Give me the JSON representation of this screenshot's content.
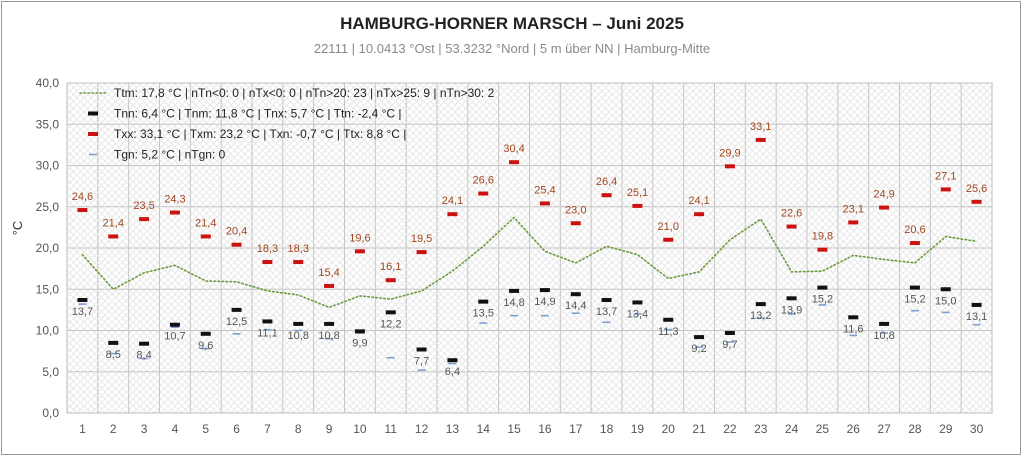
{
  "chart_data": {
    "type": "line",
    "title": "HAMBURG-HORNER MARSCH   –  Juni 2025",
    "subtitle": "22111  |  10.0413 °Ost  |  53.3232 °Nord   | 5 m über NN  |  Hamburg-Mitte",
    "ylabel": "°C",
    "xlabel": "",
    "ylim": [
      0,
      40
    ],
    "yticks": [
      "0,0",
      "5,0",
      "10,0",
      "15,0",
      "20,0",
      "25,0",
      "30,0",
      "35,0",
      "40,0"
    ],
    "x": [
      1,
      2,
      3,
      4,
      5,
      6,
      7,
      8,
      9,
      10,
      11,
      12,
      13,
      14,
      15,
      16,
      17,
      18,
      19,
      20,
      21,
      22,
      23,
      24,
      25,
      26,
      27,
      28,
      29,
      30
    ],
    "grid": true,
    "legend_position": "top-left",
    "colors": {
      "ttm": "#6a9b3c",
      "tn": "#111111",
      "tx": "#cc1111",
      "tg": "#7f9fd0",
      "tx_label": "#a0461e",
      "tn_label": "#555555"
    },
    "legend": [
      {
        "series": "ttm",
        "text": "Ttm:  17,8 °C |  nTn<0: 0  |  nTx<0: 0  | nTn>20: 23  |  nTx>25: 9  |  nTn>30: 2"
      },
      {
        "series": "tn",
        "text": "Tnn:  6,4 °C  | Tnm: 11,8 °C  | Tnx: 5,7 °C  |  Ttn: -2,4 °C |"
      },
      {
        "series": "tx",
        "text": "Txx:  33,1 °C  | Txm: 23,2 °C  |  Txn: -0,7 °C  | Ttx: 8,8 °C  |"
      },
      {
        "series": "tg",
        "text": "Tgn: 5,2  °C  | nTgn: 0"
      }
    ],
    "series": {
      "ttm": {
        "values": [
          19.2,
          15.0,
          17.0,
          17.9,
          16.0,
          15.9,
          14.8,
          14.3,
          12.8,
          14.2,
          13.8,
          14.8,
          17.2,
          20.2,
          23.7,
          19.6,
          18.2,
          20.2,
          19.2,
          16.3,
          17.1,
          21.0,
          23.5,
          17.1,
          17.2,
          19.1,
          18.6,
          18.2,
          21.4,
          20.8
        ]
      },
      "tn": {
        "values": [
          13.7,
          8.5,
          8.4,
          10.7,
          9.6,
          12.5,
          11.1,
          10.8,
          10.8,
          9.9,
          12.2,
          7.7,
          6.4,
          13.5,
          14.8,
          14.9,
          14.4,
          13.7,
          13.4,
          11.3,
          9.2,
          9.7,
          13.2,
          13.9,
          15.2,
          11.6,
          10.8,
          15.2,
          15.0,
          13.1
        ],
        "labels": [
          "13,7",
          "8,5",
          "8,4",
          "10,7",
          "9,6",
          "12,5",
          "11,1",
          "10,8",
          "10,8",
          "9,9",
          "12,2",
          "7,7",
          "6,4",
          "13,5",
          "14,8",
          "14,9",
          "14,4",
          "13,7",
          "13,4",
          "11,3",
          "9,2",
          "9,7",
          "13,2",
          "13,9",
          "15,2",
          "11,6",
          "10,8",
          "15,2",
          "15,0",
          "13,1"
        ]
      },
      "tx": {
        "values": [
          24.6,
          21.4,
          23.5,
          24.3,
          21.4,
          20.4,
          18.3,
          18.3,
          15.4,
          19.6,
          16.1,
          19.5,
          24.1,
          26.6,
          30.4,
          25.4,
          23.0,
          26.4,
          25.1,
          21.0,
          24.1,
          29.9,
          33.1,
          22.6,
          19.8,
          23.1,
          24.9,
          20.6,
          27.1,
          25.6
        ],
        "labels": [
          "24,6",
          "21,4",
          "23,5",
          "24,3",
          "21,4",
          "20,4",
          "18,3",
          "18,3",
          "15,4",
          "19,6",
          "16,1",
          "19,5",
          "24,1",
          "26,6",
          "30,4",
          "25,4",
          "23,0",
          "26,4",
          "25,1",
          "21,0",
          "24,1",
          "29,9",
          "33,1",
          "22,6",
          "19,8",
          "23,1",
          "24,9",
          "20,6",
          "27,1",
          "25,6"
        ]
      },
      "tg": {
        "values": [
          13.2,
          7.2,
          6.6,
          10.4,
          7.8,
          9.6,
          10.1,
          10.0,
          9.0,
          9.7,
          6.7,
          5.2,
          6.0,
          10.9,
          11.8,
          11.8,
          12.1,
          11.0,
          12.0,
          10.1,
          8.0,
          8.6,
          11.5,
          12.0,
          13.1,
          9.4,
          9.7,
          12.4,
          12.2,
          10.7
        ]
      }
    }
  }
}
